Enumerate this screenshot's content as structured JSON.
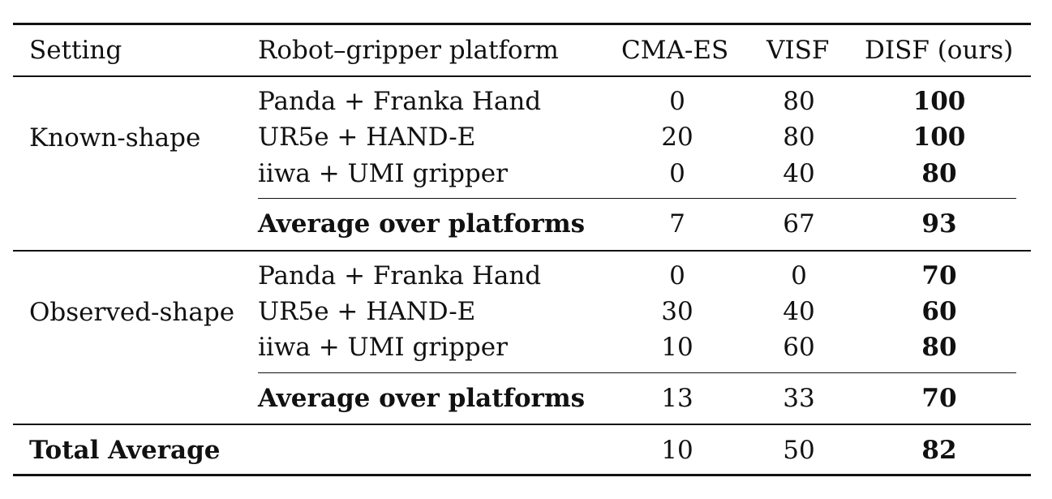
{
  "table": {
    "headers": {
      "setting": "Setting",
      "platform": "Robot–gripper platform",
      "cmaes": "CMA-ES",
      "visf": "VISF",
      "disf": "DISF (ours)"
    },
    "known": {
      "setting": "Known-shape",
      "rows": [
        {
          "platform": "Panda + Franka Hand",
          "cmaes": "0",
          "visf": "80",
          "disf": "100"
        },
        {
          "platform": "UR5e + HAND-E",
          "cmaes": "20",
          "visf": "80",
          "disf": "100"
        },
        {
          "platform": "iiwa + UMI gripper",
          "cmaes": "0",
          "visf": "40",
          "disf": "80"
        }
      ],
      "average": {
        "label": "Average over platforms",
        "cmaes": "7",
        "visf": "67",
        "disf": "93"
      }
    },
    "observed": {
      "setting": "Observed-shape",
      "rows": [
        {
          "platform": "Panda + Franka Hand",
          "cmaes": "0",
          "visf": "0",
          "disf": "70"
        },
        {
          "platform": "UR5e + HAND-E",
          "cmaes": "30",
          "visf": "40",
          "disf": "60"
        },
        {
          "platform": "iiwa + UMI gripper",
          "cmaes": "10",
          "visf": "60",
          "disf": "80"
        }
      ],
      "average": {
        "label": "Average over platforms",
        "cmaes": "13",
        "visf": "33",
        "disf": "70"
      }
    },
    "total": {
      "label": "Total Average",
      "cmaes": "10",
      "visf": "50",
      "disf": "82"
    }
  }
}
